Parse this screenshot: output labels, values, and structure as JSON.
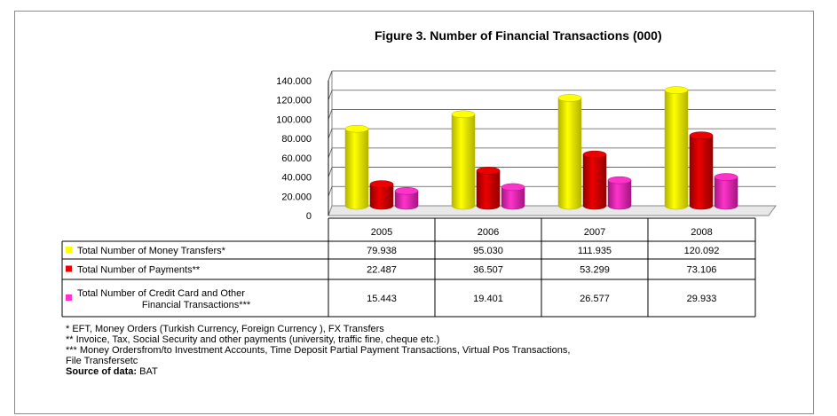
{
  "chart_data": {
    "type": "bar",
    "title": "Figure 3. Number of Financial Transactions (000)",
    "categories": [
      "2005",
      "2006",
      "2007",
      "2008"
    ],
    "ylim": [
      0,
      140000
    ],
    "yticks": [
      "0",
      "20.000",
      "40.000",
      "60.000",
      "80.000",
      "100.000",
      "120.000",
      "140.000"
    ],
    "grid": true,
    "legend_placement": "left of data table",
    "series": [
      {
        "name": "Total  Number of Money Transfers*",
        "values": [
          79938,
          95030,
          111935,
          120092
        ],
        "labels": [
          "79.938",
          "95.030",
          "111.935",
          "120.092"
        ],
        "color": "#ffff00",
        "dark": "#b3b300"
      },
      {
        "name": "Total  Number of Payments**",
        "values": [
          22487,
          36507,
          53299,
          73106
        ],
        "labels": [
          "22.487",
          "36.507",
          "53.299",
          "73.106"
        ],
        "color": "#ee0000",
        "dark": "#8f0000"
      },
      {
        "name": "Total Number of Credit Card and Other Financial Transactions***",
        "name_lines": [
          "Total Number of Credit Card and Other",
          "Financial Transactions***"
        ],
        "values": [
          15443,
          19401,
          26577,
          29933
        ],
        "labels": [
          "15.443",
          "19.401",
          "26.577",
          "29.933"
        ],
        "color": "#ff33cc",
        "dark": "#a3167f"
      }
    ]
  },
  "notes": {
    "line1": "* EFT, Money Orders (Turkish Currency, Foreign Currency ), FX Transfers",
    "line2": "** Invoice, Tax, Social Security and other  payments (university, traffic  fine, cheque etc.)",
    "line3": "*** Money Ordersfrom/to Investment Accounts, Time Deposit Partial Payment Transactions, Virtual Pos Transactions,",
    "line4": "File Transfersetc",
    "source_label": "Source of data:",
    "source_value": " BAT"
  }
}
